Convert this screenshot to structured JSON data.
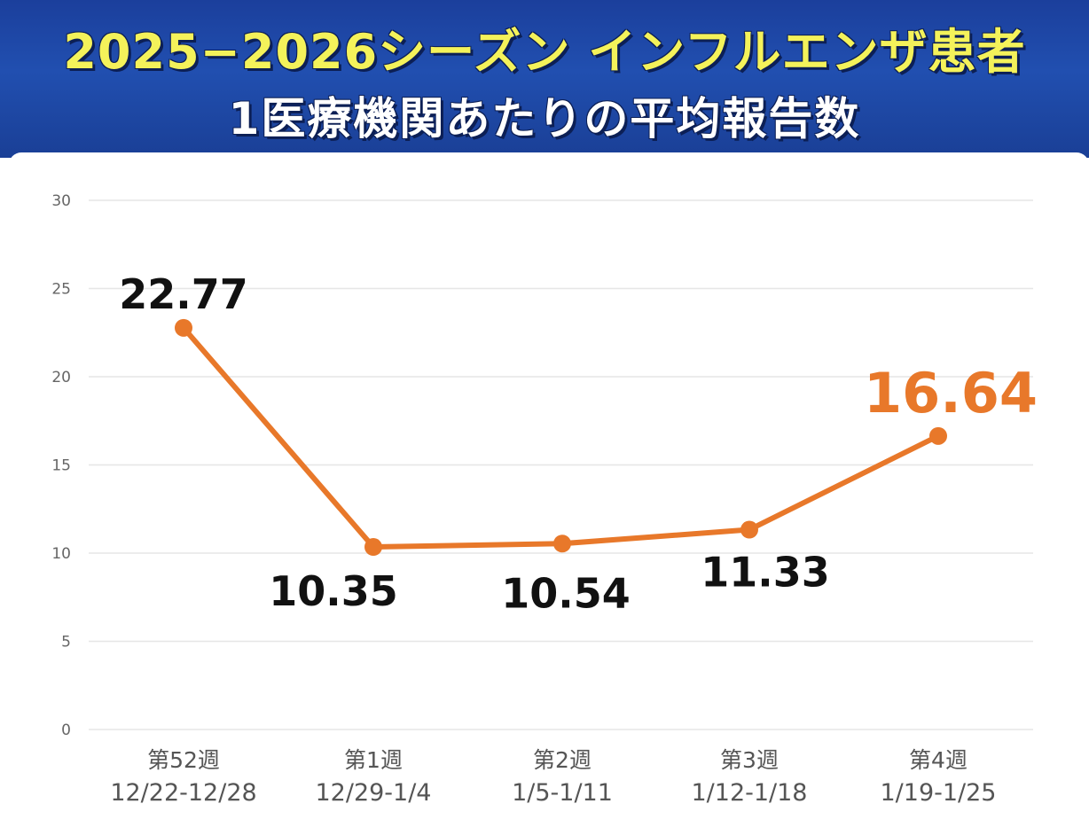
{
  "header": {
    "title_line1": "2025−2026シーズン インフルエンザ患者",
    "title_line2": "1医療機関あたりの平均報告数"
  },
  "chart_data": {
    "type": "line",
    "categories": [
      {
        "week": "第52週",
        "range": "12/22-12/28"
      },
      {
        "week": "第1週",
        "range": "12/29-1/4"
      },
      {
        "week": "第2週",
        "range": "1/5-1/11"
      },
      {
        "week": "第3週",
        "range": "1/12-1/18"
      },
      {
        "week": "第4週",
        "range": "1/19-1/25"
      }
    ],
    "series": [
      {
        "values": [
          22.77,
          10.35,
          10.54,
          11.33,
          16.64
        ]
      }
    ],
    "data_labels": [
      "22.77",
      "10.35",
      "10.54",
      "11.33",
      "16.64"
    ],
    "highlight_index": 4,
    "ylim": [
      0,
      30
    ],
    "yticks": [
      0,
      5,
      10,
      15,
      20,
      25,
      30
    ],
    "grid": true,
    "colors": {
      "line": "#e8782a",
      "highlight_label": "#e8782a",
      "label": "#111111",
      "grid": "#e6e6e6",
      "tick": "#666666"
    }
  }
}
